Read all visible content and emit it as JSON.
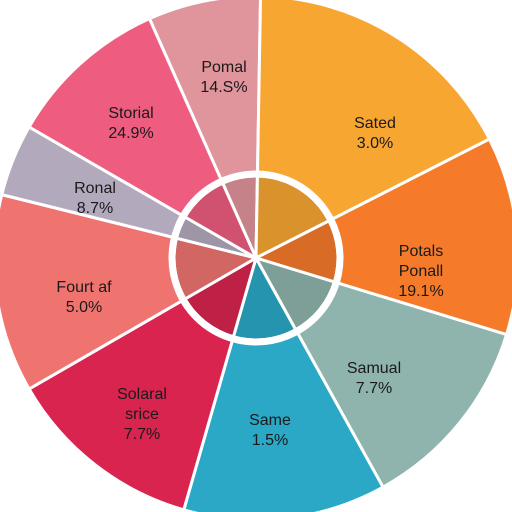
{
  "chart_data": {
    "type": "pie",
    "title": "",
    "legend": "none",
    "slices": [
      {
        "label": "Pomal",
        "value_label": "14.S%",
        "color": "#e0949b"
      },
      {
        "label": "Sated",
        "value_label": "3.0%",
        "color": "#f7a632"
      },
      {
        "label": "Potals Ponall",
        "value_label": "19.1%",
        "color": "#f57a2a"
      },
      {
        "label": "Samual",
        "value_label": "7.7%",
        "color": "#8fb3ad"
      },
      {
        "label": "Same",
        "value_label": "1.5%",
        "color": "#2aa8c6"
      },
      {
        "label": "Solaral srice",
        "value_label": "7.7%",
        "color": "#d9244f"
      },
      {
        "label": "Fourt af",
        "value_label": "5.0%",
        "color": "#ef7470"
      },
      {
        "label": "Ronal",
        "value_label": "8.7%",
        "color": "#b3a9bd"
      },
      {
        "label": "Storial",
        "value_label": "24.9%",
        "color": "#ee5d7f"
      }
    ]
  }
}
